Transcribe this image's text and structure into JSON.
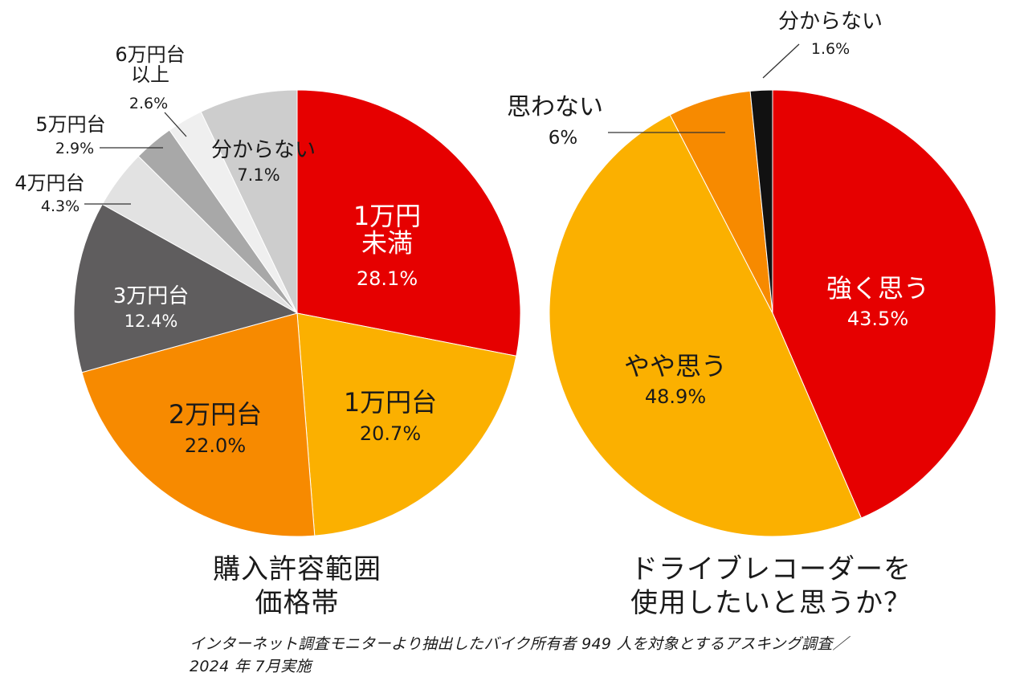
{
  "chart_data": [
    {
      "type": "pie",
      "title_lines": [
        "購入許容範囲",
        "価格帯"
      ],
      "slices": [
        {
          "label_lines": [
            "1万円",
            "未満"
          ],
          "value": 28.1,
          "value_label": "28.1%",
          "color": "#e60000"
        },
        {
          "label_lines": [
            "1万円台"
          ],
          "value": 20.7,
          "value_label": "20.7%",
          "color": "#fbb000"
        },
        {
          "label_lines": [
            "2万円台"
          ],
          "value": 22.0,
          "value_label": "22.0%",
          "color": "#f78a00"
        },
        {
          "label_lines": [
            "3万円台"
          ],
          "value": 12.4,
          "value_label": "12.4%",
          "color": "#5f5d5e"
        },
        {
          "label_lines": [
            "4万円台"
          ],
          "value": 4.3,
          "value_label": "4.3%",
          "color": "#e2e2e2"
        },
        {
          "label_lines": [
            "5万円台"
          ],
          "value": 2.9,
          "value_label": "2.9%",
          "color": "#a8a8a8"
        },
        {
          "label_lines": [
            "6万円台",
            "以上"
          ],
          "value": 2.6,
          "value_label": "2.6%",
          "color": "#efefef"
        },
        {
          "label_lines": [
            "分からない"
          ],
          "value": 7.1,
          "value_label": "7.1%",
          "color": "#cdcdcd"
        }
      ]
    },
    {
      "type": "pie",
      "title_lines": [
        "ドライブレコーダーを",
        "使用したいと思うか？"
      ],
      "slices": [
        {
          "label_lines": [
            "強く思う"
          ],
          "value": 43.5,
          "value_label": "43.5%",
          "color": "#e60000"
        },
        {
          "label_lines": [
            "やや思う"
          ],
          "value": 48.9,
          "value_label": "48.9%",
          "color": "#fbb000"
        },
        {
          "label_lines": [
            "思わない"
          ],
          "value": 6,
          "value_label": "6%",
          "color": "#f78a00"
        },
        {
          "label_lines": [
            "分からない"
          ],
          "value": 1.6,
          "value_label": "1.6%",
          "color": "#111111"
        }
      ]
    }
  ],
  "footnote_lines": [
    "インターネット調査モニターより抽出したバイク所有者 949 人を対象とするアスキング調査／",
    "2024 年 7月実施"
  ]
}
